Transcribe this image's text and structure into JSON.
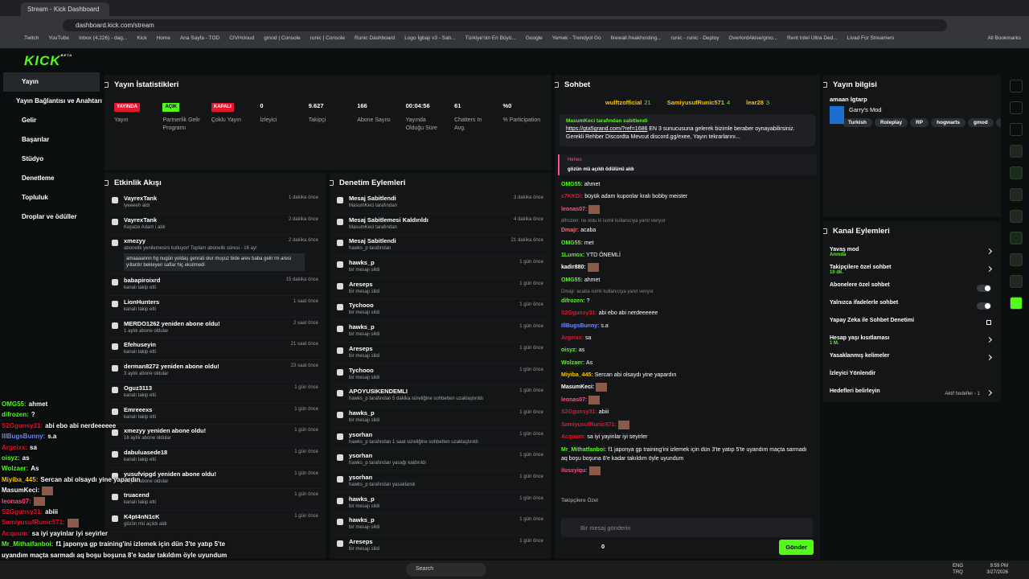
{
  "browser": {
    "tab_title": "Stream - Kick Dashboard",
    "url": "dashboard.kick.com/stream",
    "bookmarks": [
      "Twitch",
      "YouTube",
      "Inbox (4,226) - dag...",
      "Kick",
      "Home",
      "Ana Sayfa - TOD",
      "CIVHcloud",
      "gmod | Console",
      "runic | Console",
      "Runic Dashboard",
      "Logo İgbajı v3 - Satı...",
      "Türkiye'nin En Büyü...",
      "Google",
      "Yemek - Trendyol Go",
      "firewall.freakhosting...",
      "runic - runic - Deploy",
      "OverlordAkise/gmo...",
      "Rent Intel Ultra Ded...",
      "Livad For Streamers"
    ],
    "all_bookmarks": "All Bookmarks"
  },
  "header": {
    "logo": "KICK",
    "logo_badge": "BETA"
  },
  "sidebar": {
    "items": [
      "Yayın",
      "Yayın Bağlantısı ve Anahtarı",
      "Gelir",
      "Başarılar",
      "Stüdyo",
      "Denetleme",
      "Topluluk",
      "Droplar ve ödüller"
    ]
  },
  "stats": {
    "title": "Yayın İstatistikleri",
    "cells": [
      {
        "badge": "YAYINDA",
        "badge_color": "#e5162d",
        "label": "Yayın"
      },
      {
        "badge": "AÇIK",
        "badge_color": "#53fc18",
        "label": "Partnerlik Gelir Programı"
      },
      {
        "badge": "KAPALI",
        "badge_color": "#e5162d",
        "label": "Çoklu Yayın"
      },
      {
        "value": 0,
        "label": "İzleyici"
      },
      {
        "value": "9.627",
        "label": "Takipçi"
      },
      {
        "value": 166,
        "label": "Abone Sayısı"
      },
      {
        "value": "00:04:56",
        "label": "Yayında Olduğu Süre"
      },
      {
        "value": 61,
        "label": "Chatters In Avg."
      },
      {
        "value": "%0",
        "label": "% Participation"
      }
    ]
  },
  "activity": {
    "title": "Etkinlik Akışı",
    "items": [
      {
        "name": "VayrexTank",
        "detail": "iyeeeeh aldı",
        "time": "1 dakika önce"
      },
      {
        "name": "VayrexTank",
        "detail": "Kepaze Adam i aldı",
        "time": "2 dakika önce"
      },
      {
        "name": "xmezyy",
        "detail": "abonelik yenilemesini kutluyor! Toplam abonelik süresi - 16 ay!",
        "message": "amaaaannn hg nugün yoldaş genrali olur muyuz bide ares baba gelir mi aresi yıllardır bekleyen saflar hiç eksilmedi",
        "time": "2 dakika önce"
      },
      {
        "name": "babapiroixrd",
        "detail": "kanalı takip etti",
        "time": "15 dakika önce"
      },
      {
        "name": "LionHunters",
        "detail": "kanalı takip etti",
        "time": "1 saat önce"
      },
      {
        "name": "MERDO1262 yeniden abone oldu!",
        "detail": "1 aylık abone oldular",
        "time": "2 saat önce"
      },
      {
        "name": "Efehuseyin",
        "detail": "kanalı takip etti",
        "time": "21 saat önce"
      },
      {
        "name": "derman8272 yeniden abone oldu!",
        "detail": "3 aylık abone oldular",
        "time": "23 saat önce"
      },
      {
        "name": "Oguz3113",
        "detail": "kanalı takip etti",
        "time": "1 gün önce"
      },
      {
        "name": "Emreeexs",
        "detail": "kanalı takip etti",
        "time": "1 gün önce"
      },
      {
        "name": "xmezyy yeniden abone oldu!",
        "detail": "16 aylık abone oldular",
        "time": "1 gün önce"
      },
      {
        "name": "dabuluasede18",
        "detail": "kanalı takip etti",
        "time": "1 gün önce"
      },
      {
        "name": "yusufvipgd yeniden abone oldu!",
        "detail": "1 aylık abone oldular",
        "time": "1 gün önce"
      },
      {
        "name": "truacend",
        "detail": "kanalı takip etti",
        "time": "1 gün önce"
      },
      {
        "name": "K4pt4nN1cK",
        "detail": "gözün mü açıldı aldı",
        "time": "1 gün önce"
      }
    ]
  },
  "moderation": {
    "title": "Denetim Eylemleri",
    "items": [
      {
        "name": "Mesaj Sabitlendi",
        "detail": "MasumKeci tarafından",
        "time": "3 dakika önce"
      },
      {
        "name": "Mesaj Sabitlemesi Kaldırıldı",
        "detail": "MasumKeci tarafından",
        "time": "4 dakika önce"
      },
      {
        "name": "Mesaj Sabitlendi",
        "detail": "hawks_p tarafından",
        "time": "21 dakika önce"
      },
      {
        "name": "hawks_p",
        "detail": "bir mesajı sildi",
        "time": "1 gün önce"
      },
      {
        "name": "Areseps",
        "detail": "bir mesajı sildi",
        "time": "1 gün önce"
      },
      {
        "name": "Tychooo",
        "detail": "bir mesajı sildi",
        "time": "1 gün önce"
      },
      {
        "name": "hawks_p",
        "detail": "bir mesajı sildi",
        "time": "1 gün önce"
      },
      {
        "name": "Areseps",
        "detail": "bir mesajı sildi",
        "time": "1 gün önce"
      },
      {
        "name": "Tychooo",
        "detail": "bir mesajı sildi",
        "time": "1 gün önce"
      },
      {
        "name": "APOYUSIKENDEMLI",
        "detail": "hawks_p tarafından 5 dakika süreliğine sohbetten uzaklaştırıldı",
        "time": "1 gün önce"
      },
      {
        "name": "hawks_p",
        "detail": "bir mesajı sildi",
        "time": "1 gün önce"
      },
      {
        "name": "ysorhan",
        "detail": "hawks_p tarafından 1 saat süreliğine sohbetten uzaklaştırıldı",
        "time": "1 gün önce"
      },
      {
        "name": "ysorhan",
        "detail": "hawks_p tarafından yasağı kaldırıldı",
        "time": "1 gün önce"
      },
      {
        "name": "ysorhan",
        "detail": "hawks_p tarafından yasaklandı",
        "time": "1 gün önce"
      },
      {
        "name": "hawks_p",
        "detail": "bir mesajı sildi",
        "time": "1 gün önce"
      },
      {
        "name": "hawks_p",
        "detail": "bir mesajı sildi",
        "time": "1 gün önce"
      },
      {
        "name": "Areseps",
        "detail": "bir mesajı sildi",
        "time": "1 gün önce"
      }
    ]
  },
  "chat": {
    "title": "Sohbet",
    "leaders": [
      {
        "name": "wulftzofficial",
        "count": 21
      },
      {
        "name": "SamiyusufRunic571",
        "count": 4
      },
      {
        "name": "lear28",
        "count": 3
      }
    ],
    "pinned_by": "MasumKeci tarafından sabitlendi",
    "pinned_link": "https://gta5grand.com/?ref=1686",
    "pinned_text": "EN 3 sunucusuna gelerek bizimle beraber oynayabilirsiniz. Gerekli Rehber Discordta Mevcut discord.gg/exee, Yayın tekrarlarını...",
    "redeem_user": "Heneo",
    "redeem_text": "gözün mü açıldı ödülünü aldı",
    "messages": [
      {
        "user": "OMG55:",
        "color": "#53fc18",
        "text": "ahmet"
      },
      {
        "user": "s7KKDi:",
        "color": "#e5162d",
        "text": "büyük adam kuponlar kralı bobby meister"
      },
      {
        "user": "leonas07:",
        "color": "#ff4f8b"
      },
      {
        "reply": "difrozen: ne oldu ki isimli kullanıcıya yanıt veriyor",
        "user": "Dmajr:",
        "color": "#ff6b6b",
        "text": "acaba"
      },
      {
        "user": "OMG55:",
        "color": "#53fc18",
        "text": "met"
      },
      {
        "user": "1Lumox:",
        "color": "#53fc18",
        "text": "YTD ÖNEMLİ"
      },
      {
        "user": "kadir880:",
        "color": "#ffffff"
      },
      {
        "user": "OMG55:",
        "color": "#53fc18",
        "text": "ahmet"
      },
      {
        "reply": "Dmajr: acaba isimli kullanıcıya yanıt veriyor",
        "user": "difrozen:",
        "color": "#53fc18",
        "text": "?"
      },
      {
        "user": "S2Ggunsy31:",
        "color": "#e5162d",
        "text": "abi ebo abi nerdeeeeee"
      },
      {
        "user": "IllBugsBunny:",
        "color": "#6f8cff",
        "text": "s.a"
      },
      {
        "user": "Argeixx:",
        "color": "#e5162d",
        "text": "sa"
      },
      {
        "user": "oisyz:",
        "color": "#53fc18",
        "text": "as"
      },
      {
        "user": "Wolzaer:",
        "color": "#53fc18",
        "text": "As"
      },
      {
        "user": "Miyiba_445:",
        "color": "#f5c400",
        "text": "Sercan abi olsaydı yine yapardın"
      },
      {
        "user": "MasumKeci:",
        "color": "#ffffff"
      },
      {
        "user": "leonas07:",
        "color": "#ff4f8b"
      },
      {
        "user": "S2Ggunsy31:",
        "color": "#e5162d",
        "text": "abiii"
      },
      {
        "user": "SamiyusufRunic571:",
        "color": "#e5162d"
      },
      {
        "user": "Acquum:",
        "color": "#e5162d",
        "text": "sa iyi yayinlar iyi seyirler"
      },
      {
        "user": "Mr_Mithatfanboi:",
        "color": "#53fc18",
        "text": "f1 japonya gp training'ini izlemek için dün 3'te yatıp 5'te uyandım maçta sarmadı aq boşu boşuna 8'e kadar takıldım öyle uyundum"
      },
      {
        "user": "ilussyiqu:",
        "color": "#ff4f8b"
      }
    ],
    "followers_only": "Takipçilere Özel",
    "input_placeholder": "Bir mesaj gönderin",
    "points": 0,
    "send": "Gönder"
  },
  "stream_info": {
    "title": "Yayın bilgisi",
    "stream_title": "amaan lgtarp",
    "category": "Garry's Mod",
    "tags": [
      "Turkish",
      "Roleplay",
      "RP",
      "hogwarts",
      "gmod",
      "exe"
    ]
  },
  "channel_actions": {
    "title": "Kanal Eylemleri",
    "items": [
      {
        "label": "Yavaş mod",
        "sub": "Anında",
        "control": "arrow"
      },
      {
        "label": "Takipçilere özel sohbet",
        "sub": "10 dk.",
        "control": "arrow"
      },
      {
        "label": "Abonelere özel sohbet",
        "control": "toggle"
      },
      {
        "label": "Yalnızca ifadelerle sohbet",
        "control": "toggle"
      },
      {
        "label": "Yapay Zeka ile Sohbet Denetimi",
        "control": "ext"
      },
      {
        "label": "Hesap yaşı kısıtlaması",
        "sub": "1 M.",
        "control": "arrow"
      },
      {
        "label": "Yasaklanmış kelimeler",
        "control": "arrow"
      },
      {
        "label": "İzleyici Yönlendir"
      },
      {
        "label": "Hedefleri belirleyin",
        "note": "Aktif hedefler - 1",
        "control": "arrow"
      }
    ]
  },
  "overlay": [
    {
      "user": "OMG55:",
      "color": "#53fc18",
      "text": "ahmet"
    },
    {
      "user": "difrozen:",
      "color": "#53fc18",
      "text": "?"
    },
    {
      "user": "S2Ggunsy31:",
      "color": "#e5162d",
      "text": "abi ebo abi nerdeeeeee"
    },
    {
      "user": "IllBugsBunny:",
      "color": "#6f8cff",
      "text": "s.a"
    },
    {
      "user": "Argeixx:",
      "color": "#e5162d",
      "text": "sa"
    },
    {
      "user": "oisyz:",
      "color": "#53fc18",
      "text": "as"
    },
    {
      "user": "Wolzaer:",
      "color": "#53fc18",
      "text": "As"
    },
    {
      "user": "Miyiba_445:",
      "color": "#f5c400",
      "text": "Sercan abi olsaydı yine yapardın"
    },
    {
      "user": "MasumKeci:",
      "color": "#ffffff"
    },
    {
      "user": "leonas07:",
      "color": "#ff4f8b"
    },
    {
      "user": "S2Ggunsy31:",
      "color": "#e5162d",
      "text": "abiii"
    },
    {
      "user": "SamiyusufRunic571:",
      "color": "#e5162d"
    },
    {
      "user": "Acquum:",
      "color": "#e5162d",
      "text": "sa iyi yayinlar iyi seyirler"
    },
    {
      "user": "Mr_Mithatfanboi:",
      "color": "#53fc18",
      "text": "f1 japonya gp training'ini izlemek için dün 3'te yatıp 5'te uyandım maçta sarmadı aq boşu boşuna 8'e kadar takıldım öyle uyundum"
    }
  ],
  "taskbar": {
    "search": "Search",
    "lang": "ENG",
    "layout": "TRQ",
    "time": "9:59 PM",
    "date": "3/27/2026"
  }
}
